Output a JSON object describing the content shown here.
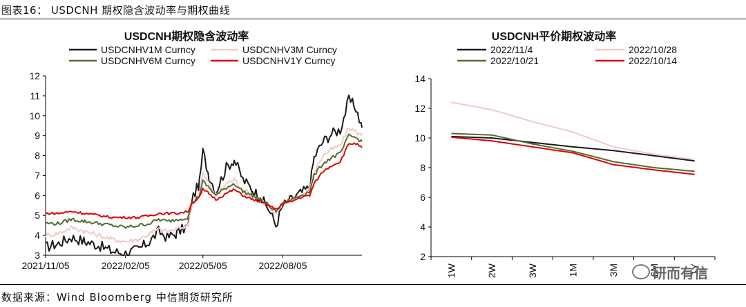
{
  "figure_title": "图表16： USDCNH 期权隐含波动率与期权曲线",
  "source": "数据来源：Wind  Bloomberg  中信期货研究所",
  "watermark": "研而有信",
  "chart_data": [
    {
      "type": "line",
      "title": "USDCNH期权隐含波动率",
      "xlabel": "",
      "ylabel": "",
      "x_tick_labels": [
        "2021/11/05",
        "2022/02/05",
        "2022/05/05",
        "2022/08/05"
      ],
      "x_tick_dates": [
        "2021-11-05",
        "2022-02-05",
        "2022-05-05",
        "2022-08-05"
      ],
      "xlim": [
        "2021-11-05",
        "2022-11-04"
      ],
      "ylim": [
        3,
        12
      ],
      "yticks": [
        3,
        4,
        5,
        6,
        7,
        8,
        9,
        10,
        11,
        12
      ],
      "grid": false,
      "legend_position": "top",
      "series": [
        {
          "name": "USDCNHV1M Curncy",
          "color": "#1a1a1a",
          "points": [
            [
              "2021-11-05",
              3.4
            ],
            [
              "2021-11-20",
              3.6
            ],
            [
              "2021-12-05",
              3.9
            ],
            [
              "2021-12-20",
              3.7
            ],
            [
              "2022-01-05",
              3.5
            ],
            [
              "2022-01-20",
              3.2
            ],
            [
              "2022-02-05",
              3.1
            ],
            [
              "2022-02-20",
              3.3
            ],
            [
              "2022-03-05",
              3.7
            ],
            [
              "2022-03-15",
              4.2
            ],
            [
              "2022-03-25",
              3.9
            ],
            [
              "2022-04-05",
              4.1
            ],
            [
              "2022-04-18",
              4.5
            ],
            [
              "2022-04-22",
              5.8
            ],
            [
              "2022-05-01",
              6.6
            ],
            [
              "2022-05-05",
              8.2
            ],
            [
              "2022-05-12",
              7.0
            ],
            [
              "2022-05-20",
              6.2
            ],
            [
              "2022-06-01",
              7.4
            ],
            [
              "2022-06-10",
              7.8
            ],
            [
              "2022-06-20",
              6.8
            ],
            [
              "2022-07-01",
              6.3
            ],
            [
              "2022-07-10",
              5.9
            ],
            [
              "2022-07-20",
              5.3
            ],
            [
              "2022-07-28",
              4.5
            ],
            [
              "2022-08-05",
              5.5
            ],
            [
              "2022-08-15",
              5.8
            ],
            [
              "2022-08-25",
              6.1
            ],
            [
              "2022-09-05",
              6.4
            ],
            [
              "2022-09-10",
              7.9
            ],
            [
              "2022-09-20",
              8.7
            ],
            [
              "2022-09-30",
              9.1
            ],
            [
              "2022-10-10",
              9.3
            ],
            [
              "2022-10-20",
              10.8
            ],
            [
              "2022-10-28",
              10.4
            ],
            [
              "2022-11-04",
              9.4
            ]
          ]
        },
        {
          "name": "USDCNHV3M Curncy",
          "color": "#f2c9c9",
          "points": [
            [
              "2021-11-05",
              4.0
            ],
            [
              "2021-11-20",
              4.1
            ],
            [
              "2021-12-05",
              4.4
            ],
            [
              "2021-12-20",
              4.2
            ],
            [
              "2022-01-05",
              4.0
            ],
            [
              "2022-01-20",
              3.8
            ],
            [
              "2022-02-05",
              3.7
            ],
            [
              "2022-02-20",
              3.8
            ],
            [
              "2022-03-05",
              4.1
            ],
            [
              "2022-03-15",
              4.3
            ],
            [
              "2022-03-25",
              4.2
            ],
            [
              "2022-04-05",
              4.3
            ],
            [
              "2022-04-18",
              4.5
            ],
            [
              "2022-04-22",
              5.5
            ],
            [
              "2022-05-01",
              6.1
            ],
            [
              "2022-05-05",
              7.1
            ],
            [
              "2022-05-12",
              6.6
            ],
            [
              "2022-05-20",
              6.0
            ],
            [
              "2022-06-01",
              6.6
            ],
            [
              "2022-06-10",
              6.8
            ],
            [
              "2022-06-20",
              6.3
            ],
            [
              "2022-07-01",
              6.0
            ],
            [
              "2022-07-10",
              5.8
            ],
            [
              "2022-07-20",
              5.4
            ],
            [
              "2022-07-28",
              5.0
            ],
            [
              "2022-08-05",
              5.6
            ],
            [
              "2022-08-15",
              5.8
            ],
            [
              "2022-08-25",
              6.0
            ],
            [
              "2022-09-05",
              6.3
            ],
            [
              "2022-09-10",
              7.2
            ],
            [
              "2022-09-20",
              8.0
            ],
            [
              "2022-09-30",
              8.3
            ],
            [
              "2022-10-10",
              8.5
            ],
            [
              "2022-10-20",
              9.4
            ],
            [
              "2022-10-28",
              9.2
            ],
            [
              "2022-11-04",
              9.0
            ]
          ]
        },
        {
          "name": "USDCNHV6M Curncy",
          "color": "#556b2f",
          "points": [
            [
              "2021-11-05",
              4.6
            ],
            [
              "2021-11-20",
              4.6
            ],
            [
              "2021-12-05",
              4.8
            ],
            [
              "2021-12-20",
              4.7
            ],
            [
              "2022-01-05",
              4.6
            ],
            [
              "2022-01-20",
              4.5
            ],
            [
              "2022-02-05",
              4.4
            ],
            [
              "2022-02-20",
              4.5
            ],
            [
              "2022-03-05",
              4.6
            ],
            [
              "2022-03-15",
              4.8
            ],
            [
              "2022-03-25",
              4.7
            ],
            [
              "2022-04-05",
              4.8
            ],
            [
              "2022-04-18",
              4.9
            ],
            [
              "2022-04-22",
              5.6
            ],
            [
              "2022-05-01",
              6.0
            ],
            [
              "2022-05-05",
              6.7
            ],
            [
              "2022-05-12",
              6.4
            ],
            [
              "2022-05-20",
              6.0
            ],
            [
              "2022-06-01",
              6.4
            ],
            [
              "2022-06-10",
              6.6
            ],
            [
              "2022-06-20",
              6.2
            ],
            [
              "2022-07-01",
              6.0
            ],
            [
              "2022-07-10",
              5.8
            ],
            [
              "2022-07-20",
              5.5
            ],
            [
              "2022-07-28",
              5.2
            ],
            [
              "2022-08-05",
              5.6
            ],
            [
              "2022-08-15",
              5.8
            ],
            [
              "2022-08-25",
              6.0
            ],
            [
              "2022-09-05",
              6.2
            ],
            [
              "2022-09-10",
              7.0
            ],
            [
              "2022-09-20",
              7.6
            ],
            [
              "2022-09-30",
              7.9
            ],
            [
              "2022-10-10",
              8.1
            ],
            [
              "2022-10-20",
              9.0
            ],
            [
              "2022-10-28",
              8.9
            ],
            [
              "2022-11-04",
              8.7
            ]
          ]
        },
        {
          "name": "USDCNHV1Y Curncy",
          "color": "#e00000",
          "points": [
            [
              "2021-11-05",
              5.1
            ],
            [
              "2021-11-20",
              5.1
            ],
            [
              "2021-12-05",
              5.2
            ],
            [
              "2021-12-20",
              5.1
            ],
            [
              "2022-01-05",
              5.0
            ],
            [
              "2022-01-20",
              4.9
            ],
            [
              "2022-02-05",
              4.9
            ],
            [
              "2022-02-20",
              4.9
            ],
            [
              "2022-03-05",
              5.0
            ],
            [
              "2022-03-15",
              5.1
            ],
            [
              "2022-03-25",
              5.1
            ],
            [
              "2022-04-05",
              5.1
            ],
            [
              "2022-04-18",
              5.2
            ],
            [
              "2022-04-22",
              5.6
            ],
            [
              "2022-05-01",
              5.9
            ],
            [
              "2022-05-05",
              6.3
            ],
            [
              "2022-05-12",
              6.1
            ],
            [
              "2022-05-20",
              5.8
            ],
            [
              "2022-06-01",
              6.1
            ],
            [
              "2022-06-10",
              6.3
            ],
            [
              "2022-06-20",
              6.0
            ],
            [
              "2022-07-01",
              5.8
            ],
            [
              "2022-07-10",
              5.7
            ],
            [
              "2022-07-20",
              5.5
            ],
            [
              "2022-07-28",
              5.3
            ],
            [
              "2022-08-05",
              5.6
            ],
            [
              "2022-08-15",
              5.7
            ],
            [
              "2022-08-25",
              5.9
            ],
            [
              "2022-09-05",
              6.0
            ],
            [
              "2022-09-10",
              6.6
            ],
            [
              "2022-09-20",
              7.2
            ],
            [
              "2022-09-30",
              7.5
            ],
            [
              "2022-10-10",
              7.7
            ],
            [
              "2022-10-20",
              8.6
            ],
            [
              "2022-10-28",
              8.6
            ],
            [
              "2022-11-04",
              8.4
            ]
          ]
        }
      ]
    },
    {
      "type": "line",
      "title": "USDCNH平价期权波动率",
      "xlabel": "",
      "ylabel": "",
      "categories": [
        "1W",
        "2W",
        "3W",
        "1M",
        "3M",
        "6M",
        "1Y"
      ],
      "ylim": [
        2,
        14
      ],
      "yticks": [
        2,
        4,
        6,
        8,
        10,
        12,
        14
      ],
      "grid": false,
      "legend_position": "top",
      "series": [
        {
          "name": "2022/11/4",
          "color": "#1a1a1a",
          "values": [
            10.1,
            10.0,
            9.7,
            9.4,
            9.15,
            8.8,
            8.45
          ]
        },
        {
          "name": "2022/10/28",
          "color": "#f2c9c9",
          "values": [
            12.4,
            11.9,
            11.1,
            10.4,
            9.4,
            8.9,
            8.55
          ]
        },
        {
          "name": "2022/10/21",
          "color": "#556b2f",
          "values": [
            10.3,
            10.2,
            9.6,
            9.1,
            8.4,
            8.0,
            7.75
          ]
        },
        {
          "name": "2022/10/14",
          "color": "#e00000",
          "values": [
            10.05,
            9.8,
            9.4,
            9.0,
            8.2,
            7.85,
            7.55
          ]
        }
      ]
    }
  ]
}
